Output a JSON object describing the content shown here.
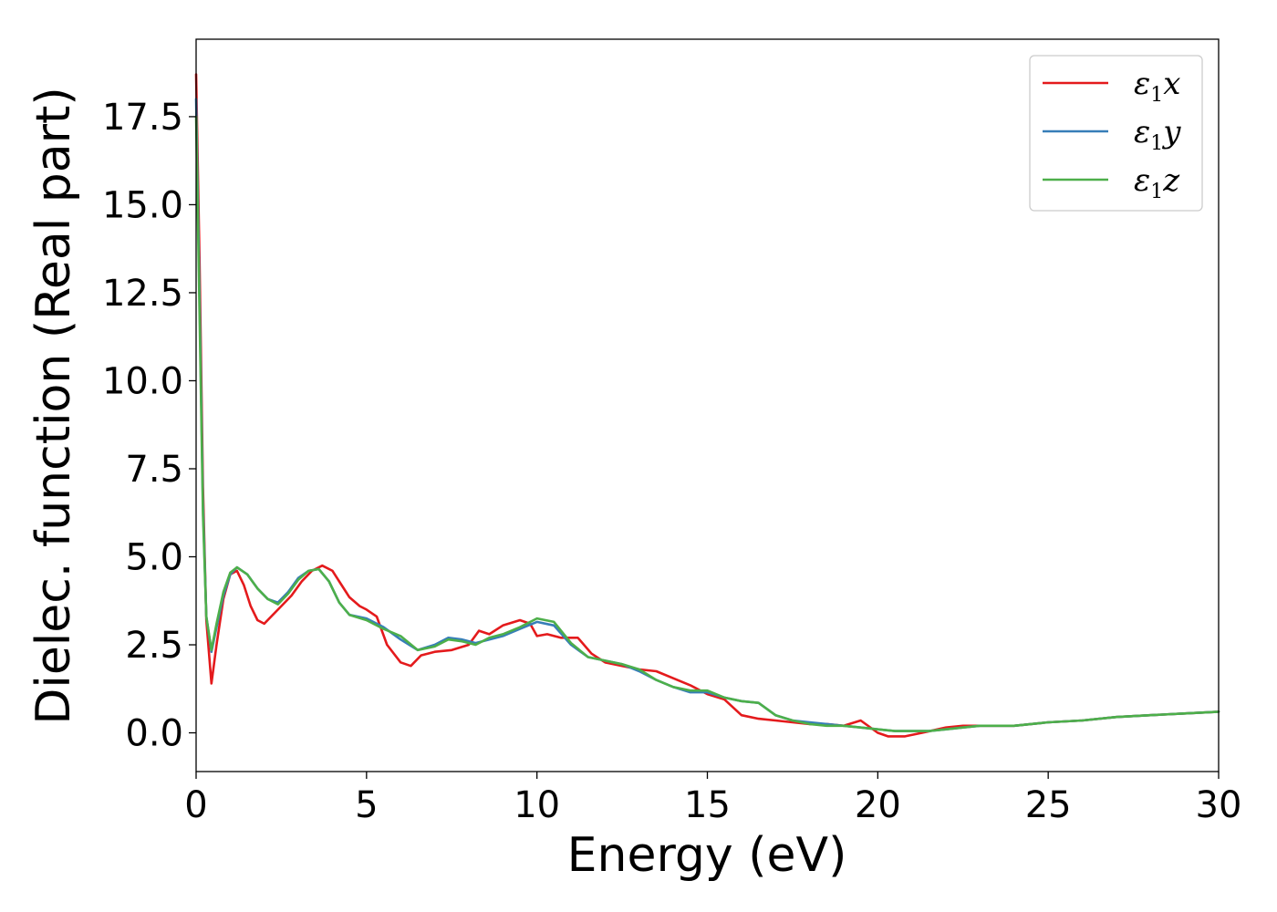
{
  "chart_data": {
    "type": "line",
    "title": "",
    "xlabel": "Energy (eV)",
    "ylabel": "Dielec. function (Real part)",
    "xlim": [
      0,
      30
    ],
    "ylim": [
      -1.1,
      19.7
    ],
    "xticks": [
      0,
      5,
      10,
      15,
      20,
      25,
      30
    ],
    "yticks": [
      0.0,
      2.5,
      5.0,
      7.5,
      10.0,
      12.5,
      15.0,
      17.5
    ],
    "xtick_labels": [
      "0",
      "5",
      "10",
      "15",
      "20",
      "25",
      "30"
    ],
    "ytick_labels": [
      "0.0",
      "2.5",
      "5.0",
      "7.5",
      "10.0",
      "12.5",
      "15.0",
      "17.5"
    ],
    "grid": false,
    "legend_position": "top-right",
    "series": [
      {
        "name": "ε1x",
        "legend_main": "ε",
        "legend_sub": "1",
        "legend_var": "x",
        "color": "#e41a1c",
        "x": [
          0,
          0.1,
          0.2,
          0.3,
          0.45,
          0.6,
          0.8,
          1.0,
          1.2,
          1.4,
          1.6,
          1.8,
          2.0,
          2.2,
          2.5,
          2.8,
          3.1,
          3.4,
          3.7,
          4.0,
          4.2,
          4.5,
          4.8,
          5.0,
          5.3,
          5.6,
          6.0,
          6.3,
          6.6,
          7.0,
          7.5,
          8.0,
          8.3,
          8.6,
          9.0,
          9.5,
          9.8,
          10.0,
          10.3,
          10.7,
          11.2,
          11.6,
          12.0,
          12.5,
          13.0,
          13.5,
          14.0,
          14.5,
          15.0,
          15.5,
          16.0,
          16.5,
          17.0,
          17.5,
          18.0,
          18.5,
          19.0,
          19.5,
          20.0,
          20.3,
          20.8,
          21.3,
          22.0,
          22.5,
          23.0,
          23.5,
          24.0,
          25.0,
          26.0,
          27.0,
          28.0,
          29.0,
          30.0
        ],
        "y": [
          18.7,
          13.5,
          7.0,
          3.2,
          1.4,
          2.5,
          3.8,
          4.5,
          4.6,
          4.2,
          3.6,
          3.2,
          3.1,
          3.3,
          3.6,
          3.9,
          4.3,
          4.6,
          4.75,
          4.6,
          4.3,
          3.85,
          3.6,
          3.5,
          3.3,
          2.5,
          2.0,
          1.9,
          2.2,
          2.3,
          2.35,
          2.5,
          2.9,
          2.8,
          3.05,
          3.2,
          3.1,
          2.75,
          2.8,
          2.7,
          2.7,
          2.25,
          2.0,
          1.9,
          1.8,
          1.75,
          1.55,
          1.35,
          1.1,
          0.95,
          0.5,
          0.4,
          0.35,
          0.3,
          0.25,
          0.25,
          0.2,
          0.35,
          0.0,
          -0.1,
          -0.1,
          0.0,
          0.15,
          0.2,
          0.2,
          0.2,
          0.2,
          0.3,
          0.35,
          0.45,
          0.5,
          0.55,
          0.6
        ]
      },
      {
        "name": "ε1y",
        "legend_main": "ε",
        "legend_sub": "1",
        "legend_var": "y",
        "color": "#377eb8",
        "x": [
          0,
          0.1,
          0.2,
          0.3,
          0.45,
          0.6,
          0.8,
          1.0,
          1.2,
          1.5,
          1.8,
          2.1,
          2.4,
          2.7,
          3.0,
          3.3,
          3.6,
          3.9,
          4.2,
          4.5,
          5.0,
          5.5,
          6.0,
          6.5,
          7.0,
          7.4,
          7.8,
          8.2,
          8.6,
          9.0,
          9.5,
          10.0,
          10.5,
          11.0,
          11.5,
          12.0,
          12.5,
          13.0,
          13.5,
          14.0,
          14.5,
          15.0,
          15.5,
          16.0,
          16.5,
          17.0,
          17.5,
          18.0,
          18.5,
          19.0,
          19.5,
          20.0,
          20.5,
          21.0,
          21.5,
          22.0,
          22.5,
          23.0,
          23.5,
          24.0,
          25.0,
          26.0,
          27.0,
          28.0,
          29.0,
          30.0
        ],
        "y": [
          18.0,
          12.5,
          6.5,
          3.3,
          2.3,
          3.0,
          3.9,
          4.5,
          4.7,
          4.5,
          4.1,
          3.8,
          3.7,
          4.0,
          4.4,
          4.6,
          4.65,
          4.3,
          3.7,
          3.35,
          3.25,
          3.0,
          2.65,
          2.35,
          2.5,
          2.7,
          2.65,
          2.55,
          2.65,
          2.75,
          2.95,
          3.15,
          3.05,
          2.5,
          2.15,
          2.05,
          1.95,
          1.75,
          1.5,
          1.3,
          1.15,
          1.15,
          1.0,
          0.9,
          0.85,
          0.5,
          0.35,
          0.3,
          0.25,
          0.2,
          0.15,
          0.1,
          0.05,
          0.05,
          0.05,
          0.1,
          0.15,
          0.2,
          0.2,
          0.2,
          0.3,
          0.35,
          0.45,
          0.5,
          0.55,
          0.6
        ]
      },
      {
        "name": "ε1z",
        "legend_main": "ε",
        "legend_sub": "1",
        "legend_var": "z",
        "color": "#4daf4a",
        "x": [
          0,
          0.1,
          0.2,
          0.3,
          0.45,
          0.6,
          0.8,
          1.0,
          1.2,
          1.5,
          1.8,
          2.1,
          2.4,
          2.7,
          3.0,
          3.3,
          3.6,
          3.9,
          4.2,
          4.5,
          5.0,
          5.5,
          6.0,
          6.5,
          7.0,
          7.4,
          7.8,
          8.2,
          8.6,
          9.0,
          9.5,
          10.0,
          10.5,
          11.0,
          11.5,
          12.0,
          12.5,
          13.0,
          13.5,
          14.0,
          14.5,
          15.0,
          15.5,
          16.0,
          16.5,
          17.0,
          17.5,
          18.0,
          18.5,
          19.0,
          19.5,
          20.0,
          20.5,
          21.0,
          21.5,
          22.0,
          22.5,
          23.0,
          23.5,
          24.0,
          25.0,
          26.0,
          27.0,
          28.0,
          29.0,
          30.0
        ],
        "y": [
          17.5,
          12.0,
          6.2,
          3.3,
          2.35,
          3.1,
          4.0,
          4.55,
          4.7,
          4.5,
          4.1,
          3.8,
          3.65,
          3.95,
          4.35,
          4.6,
          4.65,
          4.3,
          3.7,
          3.35,
          3.2,
          2.95,
          2.75,
          2.35,
          2.45,
          2.65,
          2.6,
          2.5,
          2.7,
          2.8,
          3.0,
          3.25,
          3.15,
          2.55,
          2.15,
          2.05,
          1.95,
          1.8,
          1.5,
          1.3,
          1.2,
          1.2,
          1.0,
          0.9,
          0.85,
          0.5,
          0.35,
          0.25,
          0.2,
          0.2,
          0.15,
          0.1,
          0.05,
          0.05,
          0.05,
          0.1,
          0.15,
          0.2,
          0.2,
          0.2,
          0.3,
          0.35,
          0.45,
          0.5,
          0.55,
          0.6
        ]
      }
    ]
  }
}
